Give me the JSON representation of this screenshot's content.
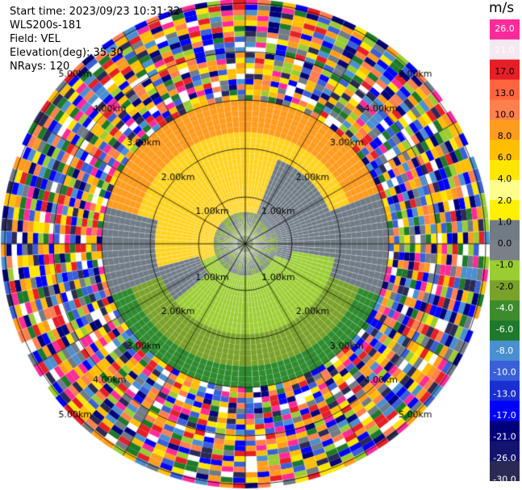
{
  "info": {
    "start_time": "Start time: 2023/09/23 10:31:32",
    "instrument": "WLS200s-181",
    "field": "Field: VEL",
    "elevation": "Elevation(deg): 35.30",
    "nrays": "NRays: 120"
  },
  "colorbar": {
    "unit": "m/s",
    "ticks": [
      "26.0",
      "21.0",
      "17.0",
      "13.0",
      "10.0",
      "8.0",
      "6.0",
      "4.0",
      "2.0",
      "1.0",
      "0.0",
      "-1.0",
      "-2.0",
      "-4.0",
      "-6.0",
      "-8.0",
      "-10.0",
      "-13.0",
      "-17.0",
      "-21.0",
      "-26.0",
      "-30.0"
    ],
    "colors": [
      "#ff2a9a",
      "#f5e8f0",
      "#e61f26",
      "#ff6640",
      "#ff7f4d",
      "#ff9c1e",
      "#ffbe00",
      "#ffe600",
      "#fffe8a",
      "#fff000",
      "#707b85",
      "#7a8088",
      "#9acd32",
      "#7aa22a",
      "#3c8c2e",
      "#1e7a2a",
      "#4a90d0",
      "#3a5fd8",
      "#1a2fd0",
      "#0000ff",
      "#00007a",
      "#14146e",
      "#2a2a55"
    ]
  },
  "chart_data": {
    "type": "heatmap",
    "projection": "polar PPI",
    "field": "VEL",
    "units": "m/s",
    "nrays": 120,
    "range_ring_labels": [
      "1.00km",
      "2.00km",
      "3.00km",
      "4.00km",
      "5.00km"
    ],
    "value_range": [
      -30.0,
      26.0
    ]
  }
}
